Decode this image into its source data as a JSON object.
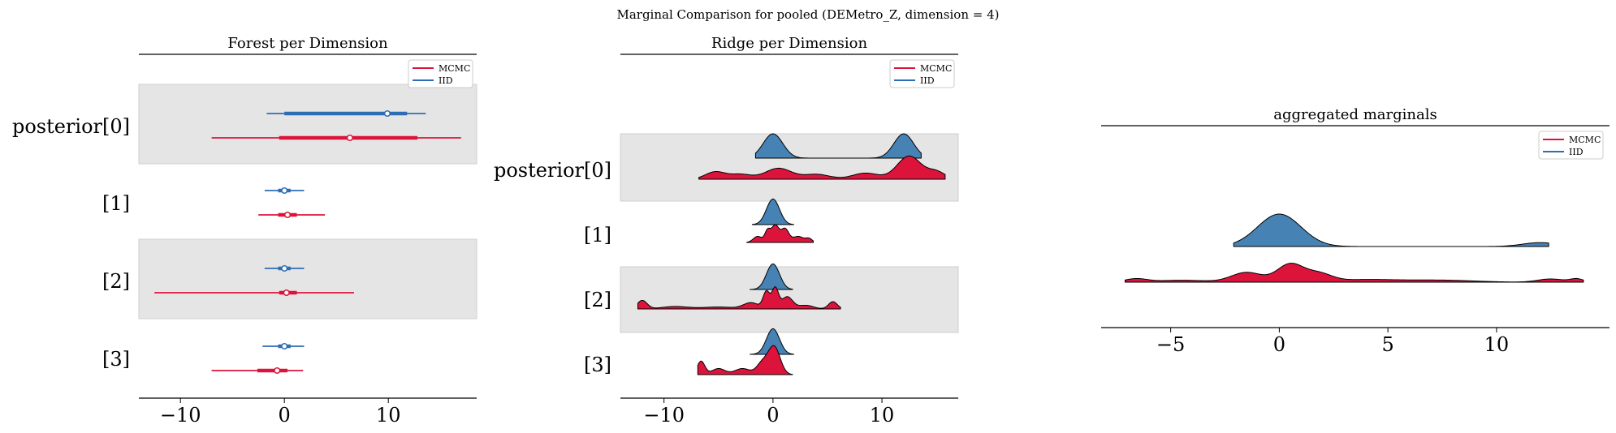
{
  "suptitle": "Marginal Comparison for pooled (DEMetro_Z, dimension = 4)",
  "colors": {
    "MCMC": "#dc143c",
    "IID": "#4682b4",
    "MCMC_line": "#dc143c",
    "IID_line": "#2e6db4",
    "band": "#e5e5e5"
  },
  "chart_data": [
    {
      "type": "forest",
      "title": "Forest per Dimension",
      "x_ticks": [
        -10,
        0,
        10
      ],
      "xlim": [
        -14,
        18.5
      ],
      "y_labels": [
        "posterior[0]",
        "[1]",
        "[2]",
        "[3]"
      ],
      "legend": {
        "entries": [
          "MCMC",
          "IID"
        ],
        "position": "top-right"
      },
      "series": [
        {
          "name": "MCMC",
          "rows": [
            {
              "hdi_low": -7.0,
              "hdi_high": 17.0,
              "iqr_low": -0.5,
              "iqr_high": 12.8,
              "median": 6.3
            },
            {
              "hdi_low": -2.5,
              "hdi_high": 3.9,
              "iqr_low": -0.6,
              "iqr_high": 1.2,
              "median": 0.3
            },
            {
              "hdi_low": -12.5,
              "hdi_high": 6.7,
              "iqr_low": -0.5,
              "iqr_high": 1.2,
              "median": 0.2
            },
            {
              "hdi_low": -7.0,
              "hdi_high": 1.8,
              "iqr_low": -2.6,
              "iqr_high": 0.3,
              "median": -0.7
            }
          ]
        },
        {
          "name": "IID",
          "rows": [
            {
              "hdi_low": -1.7,
              "hdi_high": 13.6,
              "iqr_low": 0.0,
              "iqr_high": 11.8,
              "median": 9.9
            },
            {
              "hdi_low": -1.9,
              "hdi_high": 1.9,
              "iqr_low": -0.6,
              "iqr_high": 0.6,
              "median": 0.0
            },
            {
              "hdi_low": -1.9,
              "hdi_high": 1.9,
              "iqr_low": -0.6,
              "iqr_high": 0.6,
              "median": 0.0
            },
            {
              "hdi_low": -2.1,
              "hdi_high": 1.9,
              "iqr_low": -0.6,
              "iqr_high": 0.6,
              "median": 0.0
            }
          ]
        }
      ]
    },
    {
      "type": "ridge",
      "title": "Ridge per Dimension",
      "x_ticks": [
        -10,
        0,
        10
      ],
      "xlim": [
        -14,
        17
      ],
      "y_labels": [
        "posterior[0]",
        "[1]",
        "[2]",
        "[3]"
      ],
      "legend": {
        "entries": [
          "MCMC",
          "IID"
        ],
        "position": "top-right"
      },
      "series": [
        {
          "name": "MCMC",
          "rows": [
            {
              "range": [
                -6.8,
                15.8
              ],
              "components": [
                [
                  -5.3,
                  0.9,
                  0.3
                ],
                [
                  -3.0,
                  1.0,
                  0.2
                ],
                [
                  0.5,
                  1.2,
                  0.45
                ],
                [
                  4.0,
                  1.2,
                  0.2
                ],
                [
                  8.5,
                  1.2,
                  0.25
                ],
                [
                  12.5,
                  1.1,
                  0.95
                ],
                [
                  15.0,
                  0.8,
                  0.3
                ]
              ]
            },
            {
              "range": [
                -2.4,
                3.7
              ],
              "components": [
                [
                  -1.4,
                  0.4,
                  0.25
                ],
                [
                  -0.5,
                  0.25,
                  0.45
                ],
                [
                  0.2,
                  0.35,
                  0.7
                ],
                [
                  1.1,
                  0.35,
                  0.55
                ],
                [
                  2.3,
                  0.5,
                  0.25
                ],
                [
                  3.3,
                  0.3,
                  0.15
                ]
              ]
            },
            {
              "range": [
                -12.4,
                6.2
              ],
              "components": [
                [
                  -12.0,
                  0.45,
                  0.35
                ],
                [
                  -9.0,
                  1.2,
                  0.1
                ],
                [
                  -5.0,
                  1.5,
                  0.08
                ],
                [
                  -2.0,
                  0.7,
                  0.25
                ],
                [
                  -0.6,
                  0.3,
                  0.7
                ],
                [
                  0.2,
                  0.3,
                  0.85
                ],
                [
                  1.3,
                  0.5,
                  0.5
                ],
                [
                  3.0,
                  0.7,
                  0.15
                ],
                [
                  5.5,
                  0.4,
                  0.3
                ]
              ]
            },
            {
              "range": [
                -6.9,
                1.8
              ],
              "components": [
                [
                  -6.6,
                  0.35,
                  0.55
                ],
                [
                  -5.0,
                  0.6,
                  0.25
                ],
                [
                  -2.8,
                  0.7,
                  0.25
                ],
                [
                  -1.0,
                  0.5,
                  0.45
                ],
                [
                  0.1,
                  0.55,
                  1.15
                ]
              ]
            }
          ]
        },
        {
          "name": "IID",
          "rows": [
            {
              "range": [
                -1.6,
                13.6
              ],
              "components": [
                [
                  0.0,
                  0.9,
                  1.0
                ],
                [
                  12.0,
                  0.9,
                  1.0
                ]
              ]
            },
            {
              "range": [
                -1.9,
                1.9
              ],
              "components": [
                [
                  0.0,
                  0.6,
                  1.05
                ]
              ]
            },
            {
              "range": [
                -2.1,
                1.8
              ],
              "components": [
                [
                  0.0,
                  0.6,
                  1.05
                ]
              ]
            },
            {
              "range": [
                -2.1,
                1.9
              ],
              "components": [
                [
                  0.0,
                  0.6,
                  1.05
                ]
              ]
            }
          ]
        }
      ]
    },
    {
      "type": "ridge",
      "title": "aggregated marginals",
      "x_ticks": [
        -5,
        0,
        5,
        10
      ],
      "xlim": [
        -8.2,
        15.2
      ],
      "y_labels": [],
      "legend": {
        "entries": [
          "MCMC",
          "IID"
        ],
        "position": "top-right"
      },
      "series": [
        {
          "name": "IID",
          "range": [
            -2.1,
            12.4
          ],
          "components": [
            [
              0.0,
              1.0,
              1.0
            ],
            [
              12.0,
              0.8,
              0.12
            ]
          ]
        },
        {
          "name": "MCMC",
          "range": [
            -7.1,
            14.0
          ],
          "components": [
            [
              -6.6,
              0.5,
              0.1
            ],
            [
              -4.5,
              1.2,
              0.06
            ],
            [
              -1.5,
              0.7,
              0.3
            ],
            [
              0.5,
              0.6,
              0.55
            ],
            [
              1.8,
              0.6,
              0.25
            ],
            [
              4.0,
              1.5,
              0.08
            ],
            [
              7.5,
              1.5,
              0.06
            ],
            [
              12.5,
              0.6,
              0.1
            ],
            [
              13.7,
              0.3,
              0.1
            ]
          ]
        }
      ]
    }
  ]
}
